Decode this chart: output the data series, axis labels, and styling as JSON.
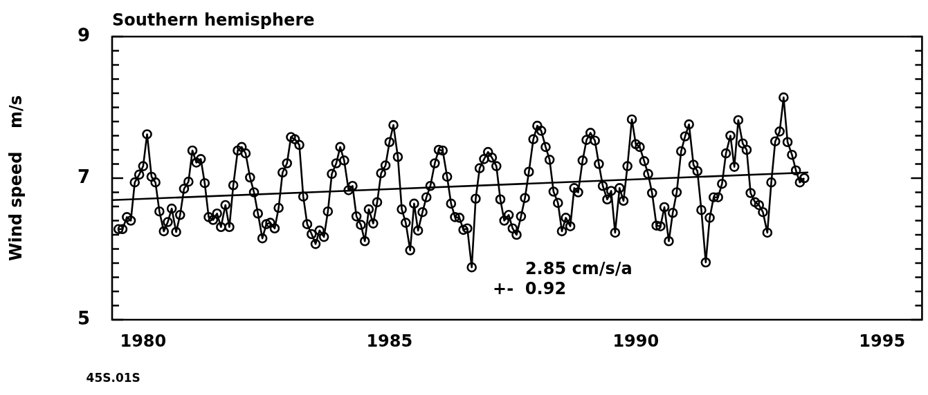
{
  "chart_data": {
    "type": "line",
    "title": "Southern hemisphere",
    "ylabel": "Wind speed    m/s",
    "annotations": [
      "2.85 cm/s/a",
      "+-  0.92",
      "45S.01S"
    ],
    "xlim": [
      1979.37,
      1995.81
    ],
    "xticks": [
      1980,
      1985,
      1990,
      1995
    ],
    "ylim": [
      5,
      9
    ],
    "yticks": [
      5,
      {
        "value": 5.2,
        "label": null
      },
      {
        "value": 5.4,
        "label": null
      },
      {
        "value": 5.6,
        "label": null
      },
      {
        "value": 5.8,
        "label": null
      },
      {
        "value": 6,
        "label": null
      },
      {
        "value": 6.2,
        "label": null
      },
      {
        "value": 6.4,
        "label": null
      },
      {
        "value": 6.6,
        "label": null
      },
      {
        "value": 6.8,
        "label": null
      },
      7,
      {
        "value": 7.2,
        "label": null
      },
      {
        "value": 7.4,
        "label": null
      },
      {
        "value": 7.6,
        "label": null
      },
      {
        "value": 7.8,
        "label": null
      },
      {
        "value": 8,
        "label": null
      },
      {
        "value": 8.2,
        "label": null
      },
      {
        "value": 8.4,
        "label": null
      },
      {
        "value": 8.6,
        "label": null
      },
      {
        "value": 8.8,
        "label": null
      },
      9
    ],
    "grid": false,
    "legend": false,
    "marker": "circle",
    "line_style": "solid",
    "series": [
      {
        "color": "#000000",
        "x": [
          1979.5,
          1979.58,
          1979.67,
          1979.75,
          1979.83,
          1979.92,
          1980,
          1980.08,
          1980.17,
          1980.25,
          1980.33,
          1980.42,
          1980.5,
          1980.58,
          1980.67,
          1980.75,
          1980.83,
          1980.92,
          1981,
          1981.08,
          1981.17,
          1981.25,
          1981.33,
          1981.42,
          1981.5,
          1981.58,
          1981.67,
          1981.75,
          1981.83,
          1981.92,
          1982,
          1982.08,
          1982.17,
          1982.25,
          1982.33,
          1982.42,
          1982.5,
          1982.58,
          1982.67,
          1982.75,
          1982.83,
          1982.92,
          1983,
          1983.08,
          1983.17,
          1983.25,
          1983.33,
          1983.42,
          1983.5,
          1983.58,
          1983.67,
          1983.75,
          1983.83,
          1983.92,
          1984,
          1984.08,
          1984.17,
          1984.25,
          1984.33,
          1984.42,
          1984.5,
          1984.58,
          1984.67,
          1984.75,
          1984.83,
          1984.92,
          1985,
          1985.08,
          1985.17,
          1985.25,
          1985.33,
          1985.42,
          1985.5,
          1985.58,
          1985.67,
          1985.75,
          1985.83,
          1985.92,
          1986,
          1986.08,
          1986.17,
          1986.25,
          1986.33,
          1986.42,
          1986.5,
          1986.58,
          1986.67,
          1986.75,
          1986.83,
          1986.92,
          1987,
          1987.08,
          1987.17,
          1987.25,
          1987.33,
          1987.42,
          1987.5,
          1987.58,
          1987.67,
          1987.75,
          1987.83,
          1987.92,
          1988,
          1988.08,
          1988.17,
          1988.25,
          1988.33,
          1988.42,
          1988.5,
          1988.58,
          1988.67,
          1988.75,
          1988.83,
          1988.92,
          1989,
          1989.08,
          1989.17,
          1989.25,
          1989.33,
          1989.42,
          1989.5,
          1989.58,
          1989.67,
          1989.75,
          1989.83,
          1989.92,
          1990,
          1990.08,
          1990.17,
          1990.25,
          1990.33,
          1990.42,
          1990.5,
          1990.58,
          1990.67,
          1990.75,
          1990.83,
          1990.92,
          1991,
          1991.08,
          1991.17,
          1991.25,
          1991.33,
          1991.42,
          1991.5,
          1991.58,
          1991.67,
          1991.75,
          1991.83,
          1991.92,
          1992,
          1992.08,
          1992.17,
          1992.25,
          1992.33,
          1992.42,
          1992.5,
          1992.58,
          1992.67,
          1992.75,
          1992.83,
          1992.92,
          1993,
          1993.08,
          1993.17,
          1993.25,
          1993.33,
          1993.42
        ],
        "values": [
          6.28,
          6.28,
          6.45,
          6.4,
          6.94,
          7.05,
          7.17,
          7.62,
          7.02,
          6.94,
          6.53,
          6.25,
          6.38,
          6.57,
          6.24,
          6.48,
          6.85,
          6.95,
          7.39,
          7.22,
          7.27,
          6.93,
          6.45,
          6.41,
          6.5,
          6.31,
          6.62,
          6.31,
          6.9,
          7.39,
          7.44,
          7.35,
          7.01,
          6.8,
          6.5,
          6.15,
          6.35,
          6.37,
          6.29,
          6.58,
          7.08,
          7.21,
          7.58,
          7.55,
          7.47,
          6.74,
          6.35,
          6.21,
          6.07,
          6.26,
          6.17,
          6.53,
          7.06,
          7.21,
          7.44,
          7.25,
          6.83,
          6.89,
          6.46,
          6.34,
          6.11,
          6.56,
          6.36,
          6.66,
          7.07,
          7.18,
          7.51,
          7.75,
          7.3,
          6.56,
          6.37,
          5.98,
          6.64,
          6.26,
          6.52,
          6.73,
          6.89,
          7.21,
          7.4,
          7.39,
          7.02,
          6.64,
          6.45,
          6.44,
          6.27,
          6.29,
          5.74,
          6.71,
          7.14,
          7.27,
          7.37,
          7.29,
          7.17,
          6.7,
          6.4,
          6.48,
          6.29,
          6.2,
          6.46,
          6.72,
          7.09,
          7.55,
          7.74,
          7.67,
          7.44,
          7.26,
          6.81,
          6.65,
          6.25,
          6.44,
          6.32,
          6.86,
          6.8,
          7.25,
          7.54,
          7.64,
          7.53,
          7.2,
          6.89,
          6.7,
          6.82,
          6.23,
          6.86,
          6.68,
          7.17,
          7.83,
          7.48,
          7.44,
          7.24,
          7.06,
          6.79,
          6.33,
          6.32,
          6.59,
          6.11,
          6.51,
          6.8,
          7.38,
          7.59,
          7.76,
          7.19,
          7.1,
          6.55,
          5.81,
          6.44,
          6.73,
          6.73,
          6.92,
          7.35,
          7.6,
          7.16,
          7.82,
          7.49,
          7.4,
          6.79,
          6.66,
          6.62,
          6.52,
          6.23,
          6.94,
          7.52,
          7.66,
          8.14,
          7.51,
          7.33,
          7.11,
          6.94,
          7.0
        ]
      },
      {
        "color": "#000000",
        "marker": "none",
        "x": [
          1979.37,
          1993.5
        ],
        "values": [
          6.69,
          7.08
        ]
      }
    ]
  }
}
